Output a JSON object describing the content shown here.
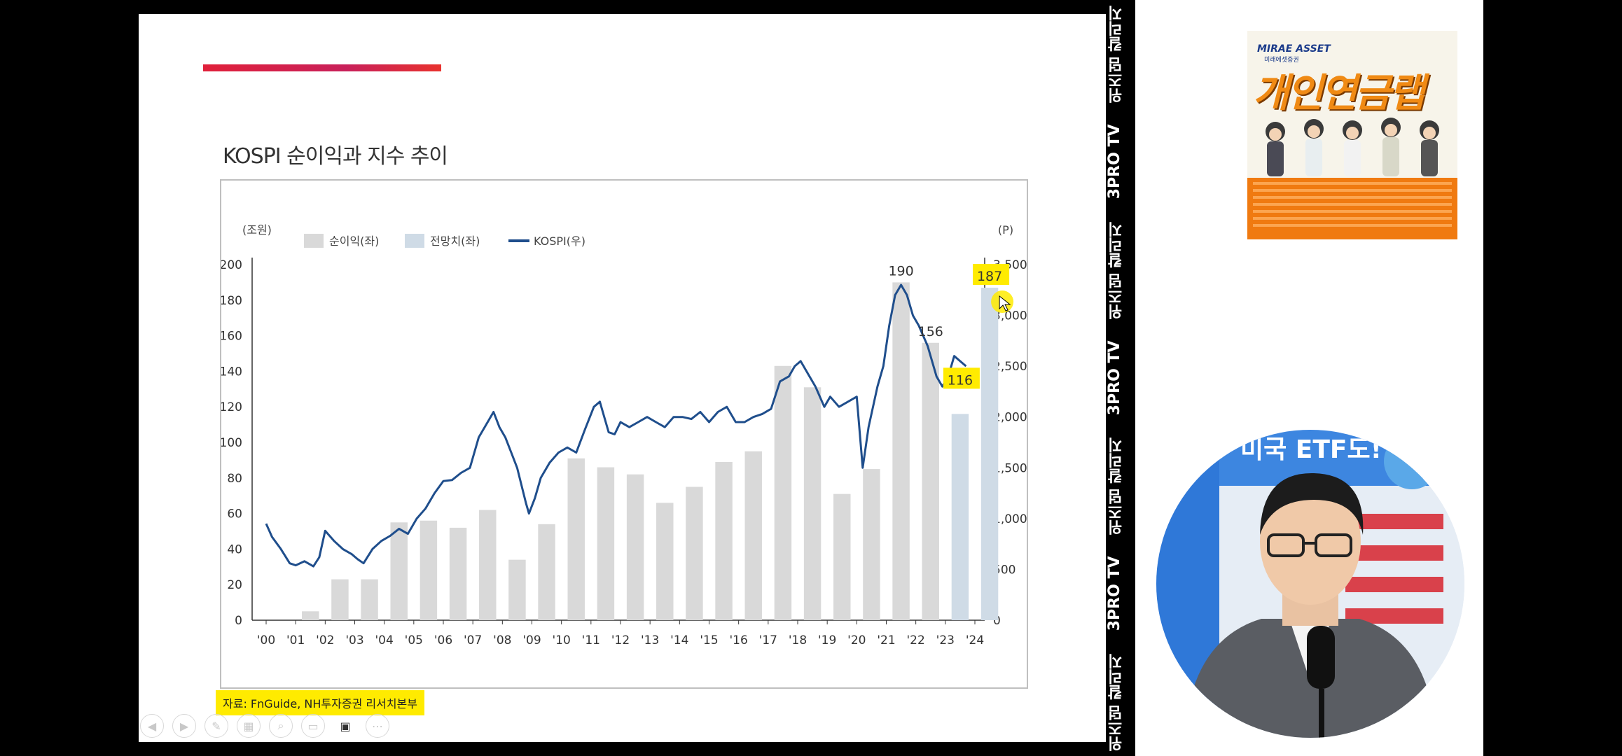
{
  "slide": {
    "title": "KOSPI 순이익과 지수 추이",
    "source": "자료: FnGuide, NH투자증권 리서치본부"
  },
  "toolbar": {
    "buttons": [
      {
        "icon": "prev-arrow-icon"
      },
      {
        "icon": "next-arrow-icon"
      },
      {
        "icon": "pen-icon"
      },
      {
        "icon": "slides-icon"
      },
      {
        "icon": "zoom-icon"
      },
      {
        "icon": "subtitle-icon"
      },
      {
        "icon": "camera-icon",
        "active": true
      },
      {
        "icon": "more-icon"
      }
    ]
  },
  "side_strip": {
    "labels": [
      "위즈덤 칼리지",
      "3PRO TV",
      "위즈덤 칼리지",
      "3PRO TV",
      "위즈덤 칼리지",
      "3PRO TV",
      "위즈덤 칼리지"
    ]
  },
  "ad": {
    "brand": "MIRAE ASSET",
    "brand_sub": "미래에셋증권",
    "title": "개인연금랩"
  },
  "presenter": {
    "background_text": "미국 ETF도!"
  },
  "colors": {
    "bar_actual": "#d9d9d9",
    "bar_forecast": "#cfdbe6",
    "kospi_line": "#1f4e8c",
    "highlight": "#ffeb00",
    "accent": "#e0203a"
  },
  "chart_data": {
    "type": "bar+line",
    "title": "KOSPI 순이익과 지수 추이",
    "left_unit": "(조원)",
    "right_unit": "(P)",
    "legend": [
      "순이익(좌)",
      "전망치(좌)",
      "KOSPI(우)"
    ],
    "categories": [
      "'00",
      "'01",
      "'02",
      "'03",
      "'04",
      "'05",
      "'06",
      "'07",
      "'08",
      "'09",
      "'10",
      "'11",
      "'12",
      "'13",
      "'14",
      "'15",
      "'16",
      "'17",
      "'18",
      "'19",
      "'20",
      "'21",
      "'22",
      "'23",
      "'24"
    ],
    "left_axis": {
      "ticks": [
        0,
        20,
        40,
        60,
        80,
        100,
        120,
        140,
        160,
        180,
        200
      ],
      "ylim": [
        0,
        200
      ]
    },
    "right_axis": {
      "ticks": [
        "0",
        "500",
        "1,000",
        "1,500",
        "2,000",
        "2,500",
        "3,000",
        "3,500"
      ],
      "ylim": [
        0,
        3500
      ]
    },
    "series": [
      {
        "name": "순이익(좌)",
        "kind": "bar",
        "values": [
          null,
          5,
          23,
          23,
          55,
          56,
          52,
          62,
          34,
          54,
          91,
          86,
          82,
          66,
          75,
          89,
          95,
          143,
          131,
          71,
          85,
          190,
          156,
          null,
          null
        ]
      },
      {
        "name": "전망치(좌)",
        "kind": "bar",
        "values": [
          null,
          null,
          null,
          null,
          null,
          null,
          null,
          null,
          null,
          null,
          null,
          null,
          null,
          null,
          null,
          null,
          null,
          null,
          null,
          null,
          null,
          null,
          null,
          116,
          187
        ]
      },
      {
        "name": "KOSPI(우)",
        "kind": "line",
        "x": [
          2000.0,
          2000.2,
          2000.5,
          2000.8,
          2001.0,
          2001.3,
          2001.6,
          2001.8,
          2002.0,
          2002.3,
          2002.6,
          2002.9,
          2003.1,
          2003.3,
          2003.6,
          2003.9,
          2004.2,
          2004.5,
          2004.8,
          2005.1,
          2005.4,
          2005.7,
          2006.0,
          2006.3,
          2006.6,
          2006.9,
          2007.2,
          2007.5,
          2007.7,
          2007.9,
          2008.1,
          2008.3,
          2008.5,
          2008.8,
          2008.9,
          2009.1,
          2009.3,
          2009.6,
          2009.9,
          2010.2,
          2010.5,
          2010.8,
          2011.1,
          2011.3,
          2011.6,
          2011.8,
          2012.0,
          2012.3,
          2012.6,
          2012.9,
          2013.2,
          2013.5,
          2013.8,
          2014.1,
          2014.4,
          2014.7,
          2015.0,
          2015.3,
          2015.6,
          2015.9,
          2016.2,
          2016.5,
          2016.8,
          2017.1,
          2017.4,
          2017.7,
          2017.9,
          2018.1,
          2018.3,
          2018.6,
          2018.9,
          2019.1,
          2019.4,
          2019.7,
          2020.0,
          2020.2,
          2020.4,
          2020.7,
          2020.9,
          2021.1,
          2021.3,
          2021.5,
          2021.7,
          2021.9,
          2022.1,
          2022.4,
          2022.7,
          2022.9,
          2023.1,
          2023.3,
          2023.5,
          2023.7
        ],
        "values": [
          950,
          820,
          700,
          560,
          540,
          580,
          530,
          620,
          880,
          780,
          700,
          650,
          600,
          560,
          700,
          780,
          830,
          900,
          850,
          1000,
          1100,
          1250,
          1370,
          1380,
          1450,
          1500,
          1800,
          1950,
          2050,
          1900,
          1800,
          1650,
          1500,
          1150,
          1050,
          1200,
          1400,
          1550,
          1650,
          1700,
          1650,
          1880,
          2100,
          2150,
          1850,
          1830,
          1950,
          1900,
          1950,
          2000,
          1950,
          1900,
          2000,
          2000,
          1980,
          2050,
          1950,
          2050,
          2100,
          1950,
          1950,
          2000,
          2030,
          2080,
          2350,
          2400,
          2500,
          2550,
          2450,
          2300,
          2100,
          2200,
          2100,
          2150,
          2200,
          1500,
          1900,
          2300,
          2500,
          2900,
          3200,
          3300,
          3200,
          3000,
          2900,
          2700,
          2400,
          2300,
          2400,
          2600,
          2550,
          2500
        ]
      }
    ],
    "annotations": [
      {
        "text": "190",
        "category": "'21"
      },
      {
        "text": "156",
        "category": "'22"
      },
      {
        "text": "116",
        "category": "'23",
        "highlight": true
      },
      {
        "text": "187",
        "category": "'24",
        "highlight": true
      }
    ]
  }
}
